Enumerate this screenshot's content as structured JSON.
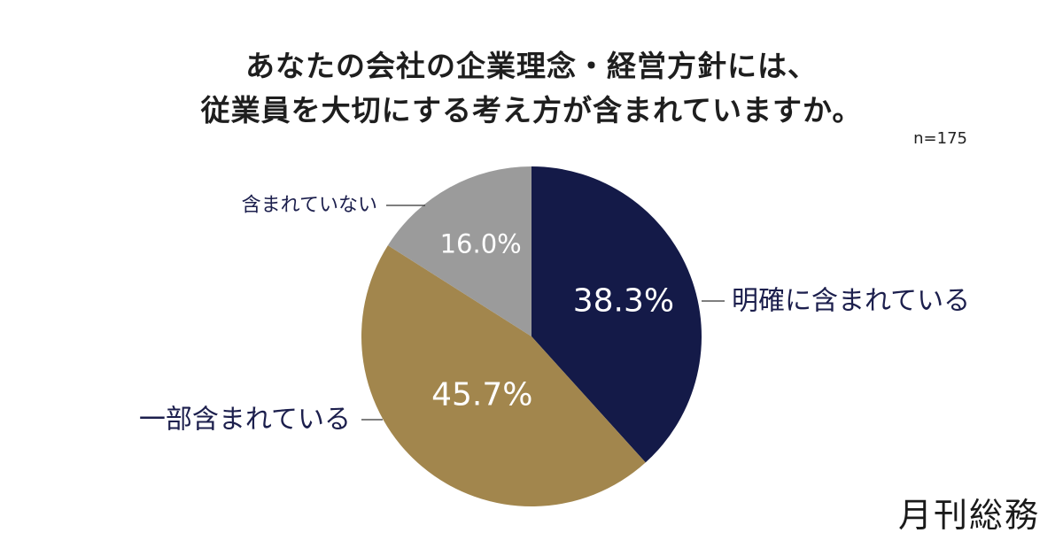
{
  "title": {
    "line1": "あなたの会社の企業理念・経営方針には、",
    "line2": "従業員を大切にする考え方が含まれていますか。"
  },
  "sample_size": "n=175",
  "publisher": "月刊総務",
  "chart_data": {
    "type": "pie",
    "title": "あなたの会社の企業理念・経営方針には、従業員を大切にする考え方が含まれていますか。",
    "sample_size": "n=175",
    "slices": [
      {
        "label": "明確に含まれている",
        "value": 38.3,
        "value_label": "38.3%",
        "color": "#141a48"
      },
      {
        "label": "一部含まれている",
        "value": 45.7,
        "value_label": "45.7%",
        "color": "#a2864d"
      },
      {
        "label": "含まれていない",
        "value": 16.0,
        "value_label": "16.0%",
        "color": "#9b9b9b"
      }
    ],
    "start": "12 o'clock",
    "direction": "clockwise",
    "legend": "none (direct labels)"
  }
}
